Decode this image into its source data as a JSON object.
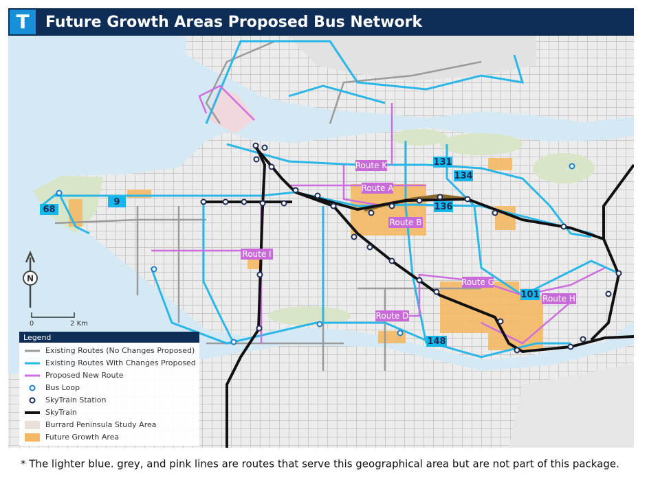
{
  "header": {
    "logo": "T",
    "title": "Future Growth Areas Proposed Bus Network"
  },
  "map": {
    "route_labels": [
      "Route K",
      "Route A",
      "Route B",
      "Route I",
      "Route G",
      "Route H",
      "Route D",
      "9",
      "68",
      "131",
      "134",
      "136",
      "101",
      "148"
    ],
    "compass": "N",
    "scale": {
      "start": "0",
      "end": "2 Km"
    }
  },
  "legend": {
    "title": "Legend",
    "items": [
      "Existing Routes (No Changes Proposed)",
      "Existing Routes With Changes Proposed",
      "Proposed New Route",
      "Bus Loop",
      "SkyTrain Station",
      "SkyTrain",
      "Burrard Peninsula Study Area",
      "Future Growth Area"
    ]
  },
  "footnote": "* The lighter blue. grey, and pink lines are routes that serve this geographical area but are not part of this package."
}
